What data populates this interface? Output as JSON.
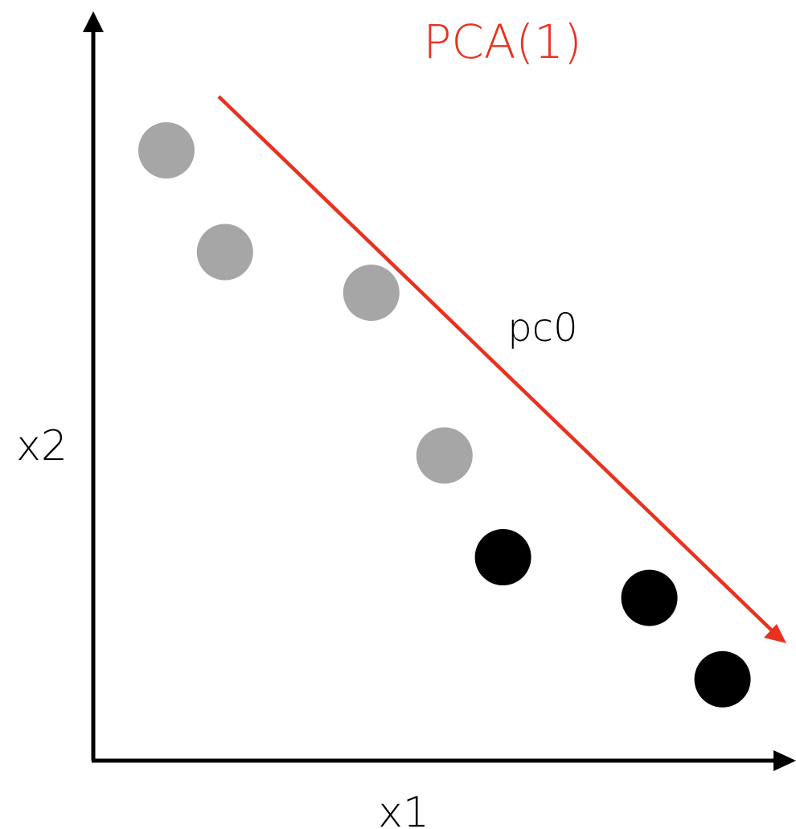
{
  "title": "PCA(1)",
  "axes": {
    "x_label": "x1",
    "y_label": "x2"
  },
  "arrow_label": "pc0",
  "colors": {
    "axis": "#000000",
    "arrow": "#e8321f",
    "title": "#e8321f",
    "class_a": "#a6a6a6",
    "class_b": "#000000"
  },
  "points": [
    {
      "class": "a",
      "x": 1.0,
      "y": 6.0
    },
    {
      "class": "a",
      "x": 1.8,
      "y": 5.0
    },
    {
      "class": "a",
      "x": 3.8,
      "y": 4.6
    },
    {
      "class": "a",
      "x": 4.8,
      "y": 3.0
    },
    {
      "class": "b",
      "x": 5.6,
      "y": 2.0
    },
    {
      "class": "b",
      "x": 7.6,
      "y": 1.6
    },
    {
      "class": "b",
      "x": 8.6,
      "y": 0.8
    }
  ]
}
